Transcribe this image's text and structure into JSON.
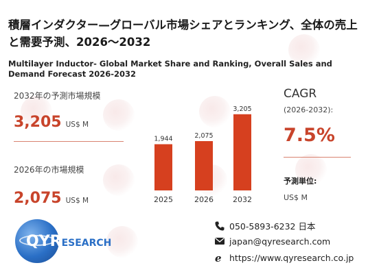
{
  "header": {
    "title": "積層インダクター—グローバル市場シェアとランキング、全体の売上と需要予測、2026〜2032",
    "subtitle": "Multilayer Inductor- Global Market Share and Ranking, Overall Sales and Demand Forecast 2026-2032"
  },
  "kpis": {
    "forecast_label": "2032年の予測市場規模",
    "forecast_value": "3,205",
    "forecast_unit": "US$ M",
    "current_label": "2026年の市場規模",
    "current_value": "2,075",
    "current_unit": "US$ M"
  },
  "cagr": {
    "title": "CAGR",
    "period": "(2026-2032):",
    "value": "7.5%"
  },
  "unit_info": {
    "label": "予測単位:",
    "value": "US$ M"
  },
  "chart_data": {
    "type": "bar",
    "categories": [
      "2025",
      "2026",
      "2032"
    ],
    "values": [
      1944,
      2075,
      3205
    ],
    "value_labels": [
      "1,944",
      "2,075",
      "3,205"
    ],
    "title": "",
    "xlabel": "",
    "ylabel": "",
    "ylim": [
      0,
      3400
    ],
    "grid": false,
    "bar_color": "#d6401f"
  },
  "logo": {
    "initial": "Q",
    "initial2": "YR",
    "rest": "ESEARCH"
  },
  "contact": {
    "phone": "050-5893-6232 日本",
    "email": "japan@qyresearch.com",
    "website": "https://www.qyresearch.co.jp"
  },
  "colors": {
    "accent": "#c8442b",
    "brand_blue": "#2a6fc6"
  }
}
